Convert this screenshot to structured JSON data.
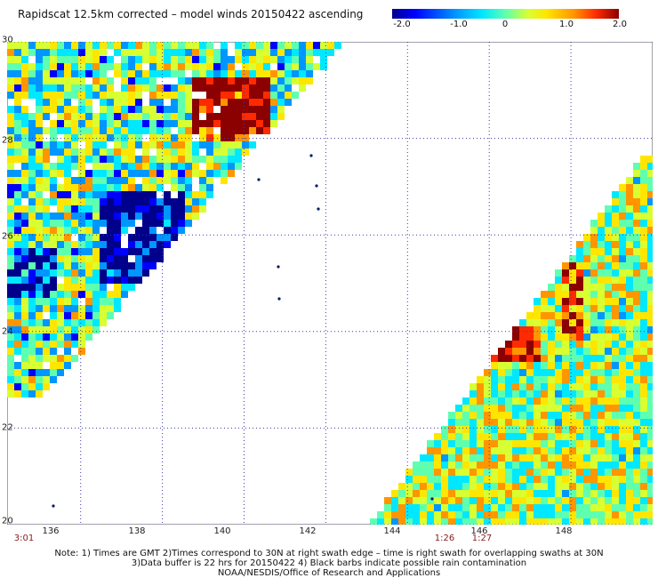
{
  "title": "Rapidscat 12.5km corrected – model winds 20150422 ascending",
  "colorbar": {
    "labels": [
      "-2.0",
      "-1.0",
      "0",
      "1.0",
      "2.0"
    ],
    "values": [
      -2.0,
      -1.0,
      0,
      1.0,
      2.0
    ],
    "min": -2.0,
    "max": 2.0,
    "colors": [
      "#00008b",
      "#0000ff",
      "#0096ff",
      "#00e8ff",
      "#5fffb0",
      "#d8ff32",
      "#ffe600",
      "#ff9600",
      "#ff2a00",
      "#8b0000"
    ]
  },
  "map": {
    "lon_range": [
      134.2,
      150.0
    ],
    "lat_range": [
      20,
      30
    ],
    "lat_ticks": [
      "30",
      "28",
      "26",
      "24",
      "22",
      "20"
    ],
    "lat_values": [
      30,
      28,
      26,
      24,
      22,
      20
    ],
    "lon_ticks": [
      "136",
      "138",
      "140",
      "142",
      "144",
      "146",
      "148"
    ],
    "lon_values": [
      136,
      138,
      140,
      142,
      144,
      146,
      148
    ],
    "gridlines": "dotted"
  },
  "swath_times": [
    {
      "label": "3:01",
      "lon": 134.6
    },
    {
      "label": "1:26",
      "lon": 145.3
    },
    {
      "label": "1:27",
      "lon": 146.3
    }
  ],
  "notes": [
    "Note: 1) Times are GMT 2)Times correspond to 30N at right swath edge – time is right swath for overlapping swaths at 30N",
    "3)Data buffer is 22 hrs for 20150422 4) Black barbs indicate possible rain contamination",
    "NOAA/NESDIS/Office of Research and Applications"
  ]
}
